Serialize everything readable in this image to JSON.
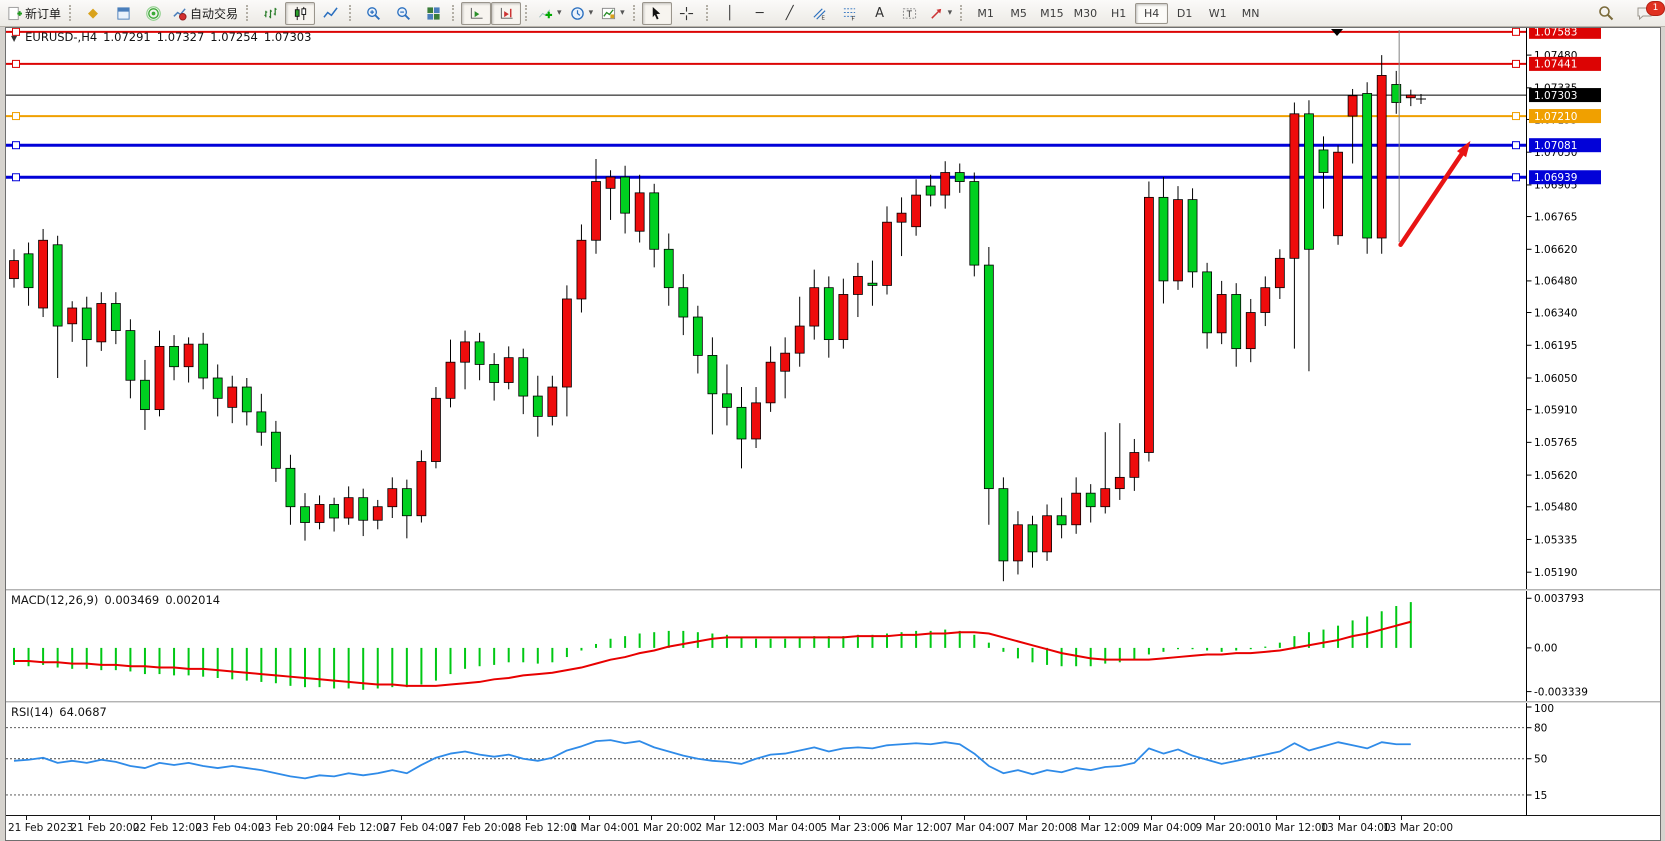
{
  "toolbar": {
    "buttons": [
      {
        "name": "new-order-button",
        "icon": "neworder-icon",
        "label": "新订单"
      },
      {
        "sep": true
      },
      {
        "name": "favorites-button",
        "icon": "favorites-icon",
        "glyph": "◆",
        "color": "#d9a21b"
      },
      {
        "name": "market-watch-button",
        "icon": "marketwatch-icon"
      },
      {
        "name": "signals-button",
        "icon": "signals-icon"
      },
      {
        "name": "auto-trading-button",
        "icon": "autotrade-icon",
        "label": "自动交易"
      },
      {
        "sep": true
      },
      {
        "name": "bar-chart-button",
        "icon": "bars-icon"
      },
      {
        "name": "candlestick-chart-button",
        "icon": "candles-icon",
        "active": true
      },
      {
        "name": "line-chart-button",
        "icon": "linechart-icon"
      },
      {
        "sep": true
      },
      {
        "name": "zoom-in-button",
        "icon": "zoomin-icon"
      },
      {
        "name": "zoom-out-button",
        "icon": "zoomout-icon"
      },
      {
        "name": "tile-windows-button",
        "icon": "tile-icon"
      },
      {
        "sep": true
      },
      {
        "name": "auto-scroll-button",
        "icon": "autoscroll-icon",
        "active": true
      },
      {
        "name": "chart-shift-button",
        "icon": "shift-icon",
        "active": true
      },
      {
        "sep": true
      },
      {
        "name": "indicators-button",
        "icon": "indicators-icon",
        "caret": true
      },
      {
        "name": "periods-button",
        "icon": "periods-icon",
        "caret": true
      },
      {
        "name": "templates-button",
        "icon": "templates-icon",
        "caret": true
      },
      {
        "sep": true
      },
      {
        "name": "cursor-button",
        "icon": "cursor-icon",
        "active": true
      },
      {
        "name": "crosshair-button",
        "icon": "crosshair-icon"
      },
      {
        "sep": true
      },
      {
        "name": "vertical-line-button",
        "icon": "vline-icon",
        "glyph": "│"
      },
      {
        "name": "horizontal-line-button",
        "icon": "hline-icon",
        "glyph": "─"
      },
      {
        "name": "trendline-button",
        "icon": "trendline-icon",
        "glyph": "╱"
      },
      {
        "name": "equidistant-channel-button",
        "icon": "channel-icon"
      },
      {
        "name": "fibonacci-button",
        "icon": "fibo-icon"
      },
      {
        "name": "text-button",
        "icon": "text-icon",
        "glyph": "A"
      },
      {
        "name": "text-label-button",
        "icon": "label-icon"
      },
      {
        "name": "arrows-button",
        "icon": "shapes-icon",
        "caret": true
      },
      {
        "sep": true
      }
    ],
    "timeframes": [
      {
        "label": "M1"
      },
      {
        "label": "M5"
      },
      {
        "label": "M15"
      },
      {
        "label": "M30"
      },
      {
        "label": "H1"
      },
      {
        "label": "H4",
        "active": true
      },
      {
        "label": "D1"
      },
      {
        "label": "W1"
      },
      {
        "label": "MN"
      }
    ],
    "notification_count": "1"
  },
  "chart": {
    "collapse_glyph": "▼",
    "symbol_period": "EURUSD-,H4",
    "open": "1.07291",
    "high": "1.07327",
    "low": "1.07254",
    "close": "1.07303"
  },
  "chart_data": {
    "type": "candlestick",
    "symbol": "EURUSD-",
    "timeframe": "H4",
    "colors": {
      "bull": "#ee0c0c",
      "bear": "#00d020",
      "wick": "#000000",
      "macd_hist": "#00c814",
      "macd_signal": "#e80000",
      "rsi_line": "#2f8be8",
      "hline_red": "#dc0404",
      "hline_orange": "#f0a000",
      "hline_blue": "#0202d8",
      "price_line": "#000000"
    },
    "scale": {
      "price_top": 1.076,
      "price_bottom": 1.0512
    },
    "price_axis_ticks": [
      "1.07480",
      "1.07335",
      "1.07195",
      "1.07050",
      "1.06905",
      "1.06765",
      "1.06620",
      "1.06480",
      "1.06340",
      "1.06195",
      "1.06050",
      "1.05910",
      "1.05765",
      "1.05620",
      "1.05480",
      "1.05335",
      "1.05190"
    ],
    "hlines": [
      {
        "price": 1.07583,
        "label": "1.07583",
        "color": "#dc0404",
        "width": 2,
        "handles": true
      },
      {
        "price": 1.07441,
        "label": "1.07441",
        "color": "#dc0404",
        "width": 2,
        "handles": true
      },
      {
        "price": 1.07303,
        "label": "1.07303",
        "color": "#000000",
        "width": 1,
        "handles": false
      },
      {
        "price": 1.0721,
        "label": "1.07210",
        "color": "#f0a000",
        "width": 2,
        "handles": true
      },
      {
        "price": 1.07081,
        "label": "1.07081",
        "color": "#0202d8",
        "width": 3,
        "handles": true
      },
      {
        "price": 1.06939,
        "label": "1.06939",
        "color": "#0202d8",
        "width": 3,
        "handles": true
      }
    ],
    "candles": [
      [
        1.0649,
        1.0662,
        1.0645,
        1.0657
      ],
      [
        1.066,
        1.0665,
        1.0637,
        1.0645
      ],
      [
        1.0636,
        1.0671,
        1.0632,
        1.0666
      ],
      [
        1.0664,
        1.0668,
        1.0605,
        1.0628
      ],
      [
        1.0629,
        1.0639,
        1.0621,
        1.0636
      ],
      [
        1.0636,
        1.0641,
        1.061,
        1.0622
      ],
      [
        1.0621,
        1.0643,
        1.0617,
        1.0638
      ],
      [
        1.0638,
        1.0643,
        1.062,
        1.0626
      ],
      [
        1.0626,
        1.0631,
        1.0596,
        1.0604
      ],
      [
        1.0604,
        1.0613,
        1.0582,
        1.0591
      ],
      [
        1.0591,
        1.0626,
        1.0588,
        1.0619
      ],
      [
        1.0619,
        1.0624,
        1.0604,
        1.061
      ],
      [
        1.061,
        1.0623,
        1.0603,
        1.062
      ],
      [
        1.062,
        1.0625,
        1.06,
        1.0605
      ],
      [
        1.0605,
        1.0611,
        1.0588,
        1.0596
      ],
      [
        1.0592,
        1.0606,
        1.0585,
        1.0601
      ],
      [
        1.0601,
        1.0605,
        1.0584,
        1.059
      ],
      [
        1.059,
        1.0598,
        1.0575,
        1.0581
      ],
      [
        1.0581,
        1.0586,
        1.0559,
        1.0565
      ],
      [
        1.0565,
        1.0571,
        1.054,
        1.0548
      ],
      [
        1.0548,
        1.0554,
        1.0533,
        1.0541
      ],
      [
        1.0541,
        1.0553,
        1.0538,
        1.0549
      ],
      [
        1.0549,
        1.0552,
        1.0537,
        1.0543
      ],
      [
        1.0543,
        1.0557,
        1.054,
        1.0552
      ],
      [
        1.0552,
        1.0556,
        1.0535,
        1.0542
      ],
      [
        1.0542,
        1.0551,
        1.0538,
        1.0548
      ],
      [
        1.0548,
        1.0561,
        1.0543,
        1.0556
      ],
      [
        1.0556,
        1.056,
        1.0534,
        1.0544
      ],
      [
        1.0544,
        1.0573,
        1.0541,
        1.0568
      ],
      [
        1.0568,
        1.0601,
        1.0565,
        1.0596
      ],
      [
        1.0596,
        1.0622,
        1.0592,
        1.0612
      ],
      [
        1.0612,
        1.0626,
        1.06,
        1.0621
      ],
      [
        1.0621,
        1.0625,
        1.0604,
        1.0611
      ],
      [
        1.0611,
        1.0616,
        1.0595,
        1.0603
      ],
      [
        1.0603,
        1.0619,
        1.06,
        1.0614
      ],
      [
        1.0614,
        1.0618,
        1.0589,
        1.0597
      ],
      [
        1.0597,
        1.0606,
        1.0579,
        1.0588
      ],
      [
        1.0588,
        1.0606,
        1.0584,
        1.0601
      ],
      [
        1.0601,
        1.0646,
        1.0588,
        1.064
      ],
      [
        1.064,
        1.0673,
        1.0634,
        1.0666
      ],
      [
        1.0666,
        1.0702,
        1.066,
        1.0692
      ],
      [
        1.0689,
        1.0697,
        1.0675,
        1.0694
      ],
      [
        1.0694,
        1.0699,
        1.0669,
        1.0678
      ],
      [
        1.067,
        1.0695,
        1.0665,
        1.0687
      ],
      [
        1.0687,
        1.0691,
        1.0654,
        1.0662
      ],
      [
        1.0662,
        1.0669,
        1.0637,
        1.0645
      ],
      [
        1.0645,
        1.0651,
        1.0624,
        1.0632
      ],
      [
        1.0632,
        1.0637,
        1.0607,
        1.0615
      ],
      [
        1.0615,
        1.0623,
        1.058,
        1.0598
      ],
      [
        1.0598,
        1.0611,
        1.0584,
        1.0592
      ],
      [
        1.0592,
        1.0601,
        1.0565,
        1.0578
      ],
      [
        1.0578,
        1.0601,
        1.0574,
        1.0594
      ],
      [
        1.0594,
        1.0619,
        1.059,
        1.0612
      ],
      [
        1.0608,
        1.0623,
        1.0596,
        1.0616
      ],
      [
        1.0616,
        1.0641,
        1.061,
        1.0628
      ],
      [
        1.0628,
        1.0653,
        1.0622,
        1.0645
      ],
      [
        1.0645,
        1.065,
        1.0614,
        1.0622
      ],
      [
        1.0622,
        1.0649,
        1.0618,
        1.0642
      ],
      [
        1.0642,
        1.0656,
        1.0632,
        1.065
      ],
      [
        1.0647,
        1.0657,
        1.0637,
        1.0646
      ],
      [
        1.0646,
        1.0681,
        1.0642,
        1.0674
      ],
      [
        1.0674,
        1.0685,
        1.0659,
        1.0678
      ],
      [
        1.0672,
        1.0693,
        1.0668,
        1.0686
      ],
      [
        1.069,
        1.0695,
        1.0681,
        1.0686
      ],
      [
        1.0686,
        1.0701,
        1.068,
        1.0696
      ],
      [
        1.0696,
        1.07,
        1.0687,
        1.0692
      ],
      [
        1.0692,
        1.0696,
        1.065,
        1.0655
      ],
      [
        1.0655,
        1.0663,
        1.054,
        1.0556
      ],
      [
        1.0556,
        1.0561,
        1.0515,
        1.0524
      ],
      [
        1.0524,
        1.0546,
        1.0518,
        1.054
      ],
      [
        1.054,
        1.0544,
        1.0521,
        1.0528
      ],
      [
        1.0528,
        1.0549,
        1.0524,
        1.0544
      ],
      [
        1.0544,
        1.0552,
        1.0534,
        1.054
      ],
      [
        1.054,
        1.0561,
        1.0536,
        1.0554
      ],
      [
        1.0554,
        1.0558,
        1.0541,
        1.0548
      ],
      [
        1.0548,
        1.0581,
        1.0545,
        1.0556
      ],
      [
        1.0556,
        1.0585,
        1.0551,
        1.0561
      ],
      [
        1.0561,
        1.0578,
        1.0555,
        1.0572
      ],
      [
        1.0572,
        1.0692,
        1.0568,
        1.0685
      ],
      [
        1.0685,
        1.0694,
        1.0638,
        1.0648
      ],
      [
        1.0648,
        1.069,
        1.0644,
        1.0684
      ],
      [
        1.0684,
        1.0689,
        1.0645,
        1.0652
      ],
      [
        1.0652,
        1.0656,
        1.0618,
        1.0625
      ],
      [
        1.0625,
        1.0648,
        1.062,
        1.0642
      ],
      [
        1.0642,
        1.0647,
        1.061,
        1.0618
      ],
      [
        1.0618,
        1.064,
        1.0612,
        1.0634
      ],
      [
        1.0634,
        1.065,
        1.0628,
        1.0645
      ],
      [
        1.0645,
        1.0662,
        1.064,
        1.0658
      ],
      [
        1.0658,
        1.0727,
        1.0618,
        1.0722
      ],
      [
        1.0722,
        1.0728,
        1.0608,
        1.0662
      ],
      [
        1.0706,
        1.0712,
        1.068,
        1.0696
      ],
      [
        1.0668,
        1.0708,
        1.0664,
        1.0705
      ],
      [
        1.0721,
        1.0733,
        1.07,
        1.073
      ],
      [
        1.0731,
        1.0736,
        1.066,
        1.0667
      ],
      [
        1.0667,
        1.0748,
        1.066,
        1.0739
      ],
      [
        1.0735,
        1.0741,
        1.0722,
        1.0727
      ],
      [
        1.07291,
        1.07327,
        1.07254,
        1.07303
      ]
    ],
    "macd": {
      "label": "MACD(12,26,9)",
      "value_main": "0.003469",
      "value_signal": "0.002014",
      "axis": [
        "0.003793",
        "0.00",
        "-0.003339"
      ],
      "values": [
        -0.0013,
        -0.0014,
        -0.0013,
        -0.0015,
        -0.0016,
        -0.0016,
        -0.0017,
        -0.0017,
        -0.0018,
        -0.002,
        -0.002,
        -0.0021,
        -0.0021,
        -0.0022,
        -0.0023,
        -0.0024,
        -0.0025,
        -0.0026,
        -0.0027,
        -0.0029,
        -0.003,
        -0.003,
        -0.0031,
        -0.0031,
        -0.0032,
        -0.0031,
        -0.003,
        -0.003,
        -0.0028,
        -0.0025,
        -0.002,
        -0.0016,
        -0.0014,
        -0.0013,
        -0.0011,
        -0.0011,
        -0.0012,
        -0.0011,
        -0.0007,
        -0.0002,
        0.0003,
        0.0007,
        0.0009,
        0.0011,
        0.0012,
        0.0013,
        0.0013,
        0.0012,
        0.0011,
        0.001,
        0.0008,
        0.0007,
        0.0007,
        0.0007,
        0.0008,
        0.0009,
        0.0009,
        0.0009,
        0.001,
        0.001,
        0.0011,
        0.0012,
        0.0013,
        0.0013,
        0.0014,
        0.0013,
        0.001,
        0.0004,
        -0.0003,
        -0.0008,
        -0.0011,
        -0.0013,
        -0.0014,
        -0.0014,
        -0.0014,
        -0.0012,
        -0.0011,
        -0.0009,
        -0.0005,
        -0.0003,
        -0.0001,
        -0.0001,
        -0.0002,
        -0.0003,
        -0.0002,
        -0.0001,
        0.0001,
        0.0004,
        0.0009,
        0.0012,
        0.0014,
        0.0017,
        0.0021,
        0.0024,
        0.0028,
        0.0032,
        0.0035
      ],
      "signal": [
        -0.001,
        -0.001,
        -0.0011,
        -0.0011,
        -0.0012,
        -0.0012,
        -0.0013,
        -0.0013,
        -0.0014,
        -0.0014,
        -0.0015,
        -0.0015,
        -0.0016,
        -0.0016,
        -0.0017,
        -0.0018,
        -0.0019,
        -0.002,
        -0.0021,
        -0.0022,
        -0.0023,
        -0.0024,
        -0.0025,
        -0.0026,
        -0.0027,
        -0.0028,
        -0.0028,
        -0.0029,
        -0.0029,
        -0.0029,
        -0.0028,
        -0.0027,
        -0.0026,
        -0.0024,
        -0.0023,
        -0.0021,
        -0.002,
        -0.0019,
        -0.0017,
        -0.0015,
        -0.0012,
        -0.0009,
        -0.0007,
        -0.0004,
        -0.0002,
        0.0001,
        0.0003,
        0.0005,
        0.0007,
        0.0008,
        0.0008,
        0.0008,
        0.0008,
        0.0008,
        0.0008,
        0.0008,
        0.0008,
        0.0008,
        0.0009,
        0.0009,
        0.0009,
        0.001,
        0.001,
        0.0011,
        0.0011,
        0.0012,
        0.0012,
        0.0011,
        0.0008,
        0.0005,
        0.0002,
        -0.0001,
        -0.0004,
        -0.0006,
        -0.0008,
        -0.0009,
        -0.0009,
        -0.0009,
        -0.0009,
        -0.0008,
        -0.0007,
        -0.0006,
        -0.0005,
        -0.0005,
        -0.0004,
        -0.0004,
        -0.0003,
        -0.0002,
        0.0,
        0.0002,
        0.0004,
        0.0006,
        0.0009,
        0.0011,
        0.0014,
        0.0017,
        0.002
      ]
    },
    "rsi": {
      "label": "RSI(14)",
      "value": "64.0687",
      "axis": [
        "100",
        "80",
        "50",
        "15"
      ],
      "levels": [
        80,
        50,
        15
      ],
      "values": [
        48,
        49,
        51,
        46,
        48,
        46,
        49,
        47,
        43,
        41,
        46,
        44,
        46,
        43,
        41,
        43,
        41,
        39,
        36,
        33,
        31,
        34,
        33,
        36,
        34,
        36,
        39,
        36,
        44,
        51,
        55,
        57,
        54,
        52,
        54,
        50,
        48,
        51,
        58,
        62,
        67,
        68,
        65,
        67,
        61,
        57,
        53,
        50,
        48,
        47,
        45,
        50,
        54,
        55,
        58,
        61,
        57,
        60,
        61,
        60,
        63,
        64,
        65,
        64,
        66,
        64,
        55,
        43,
        36,
        39,
        35,
        39,
        37,
        41,
        39,
        42,
        43,
        46,
        60,
        55,
        59,
        53,
        49,
        45,
        48,
        51,
        54,
        57,
        65,
        58,
        62,
        66,
        63,
        60,
        66,
        64,
        64
      ]
    },
    "time_axis": [
      "21 Feb 2023",
      "21 Feb 20:00",
      "22 Feb 12:00",
      "23 Feb 04:00",
      "23 Feb 20:00",
      "24 Feb 12:00",
      "27 Feb 04:00",
      "27 Feb 20:00",
      "28 Feb 12:00",
      "1 Mar 04:00",
      "1 Mar 20:00",
      "2 Mar 12:00",
      "3 Mar 04:00",
      "5 Mar 23:00",
      "6 Mar 12:00",
      "7 Mar 04:00",
      "7 Mar 20:00",
      "8 Mar 12:00",
      "9 Mar 04:00",
      "9 Mar 20:00",
      "10 Mar 12:00",
      "13 Mar 04:00",
      "13 Mar 20:00"
    ],
    "annotations": {
      "arrow": {
        "from_index": 95.3,
        "from_price": 1.0664,
        "to_index": 100.1,
        "to_price": 1.071,
        "color": "#e81414"
      },
      "vertical_line_index": 95.2
    }
  }
}
